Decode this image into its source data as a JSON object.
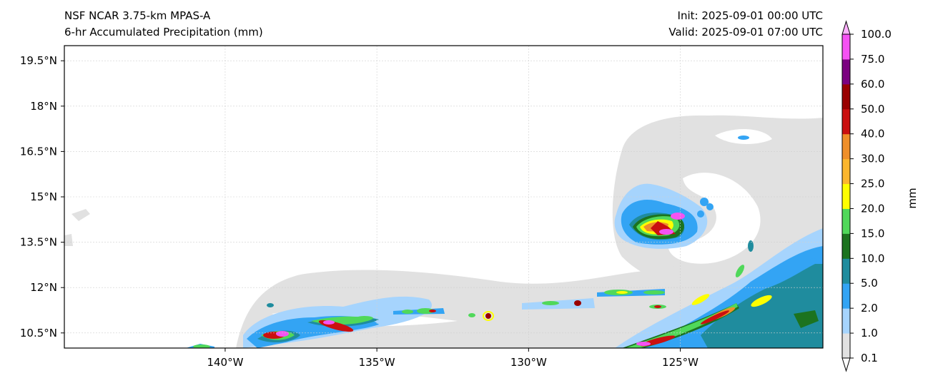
{
  "header": {
    "model": "NSF NCAR 3.75-km MPAS-A",
    "field": "6-hr Accumulated Precipitation (mm)",
    "init": "Init: 2025-09-01 00:00 UTC",
    "valid": "Valid: 2025-09-01 07:00 UTC"
  },
  "map": {
    "lon_range": [
      -145.3,
      -120.3
    ],
    "lat_range": [
      10.0,
      20.0
    ],
    "lon_ticks": [
      {
        "value": -140,
        "label": "140°W"
      },
      {
        "value": -135,
        "label": "135°W"
      },
      {
        "value": -130,
        "label": "130°W"
      },
      {
        "value": -125,
        "label": "125°W"
      }
    ],
    "lat_ticks": [
      {
        "value": 19.5,
        "label": "19.5°N"
      },
      {
        "value": 18,
        "label": "18°N"
      },
      {
        "value": 16.5,
        "label": "16.5°N"
      },
      {
        "value": 15,
        "label": "15°N"
      },
      {
        "value": 13.5,
        "label": "13.5°N"
      },
      {
        "value": 12,
        "label": "12°N"
      },
      {
        "value": 10.5,
        "label": "10.5°N"
      }
    ]
  },
  "colorbar": {
    "unit_label": "mm",
    "levels": [
      "0.1",
      "1.0",
      "2.0",
      "5.0",
      "10.0",
      "15.0",
      "20.0",
      "25.0",
      "30.0",
      "40.0",
      "50.0",
      "60.0",
      "75.0",
      "100.0"
    ],
    "colors": [
      "#e1e1e1",
      "#a6d4fd",
      "#33a4f4",
      "#1f8c9e",
      "#1c731f",
      "#50d85a",
      "#fefe00",
      "#fbb62e",
      "#ef8f2a",
      "#ca1010",
      "#990000",
      "#7b0080",
      "#f552f3"
    ],
    "under_color": "#ffffff",
    "over_color": "#ffb0ff"
  }
}
